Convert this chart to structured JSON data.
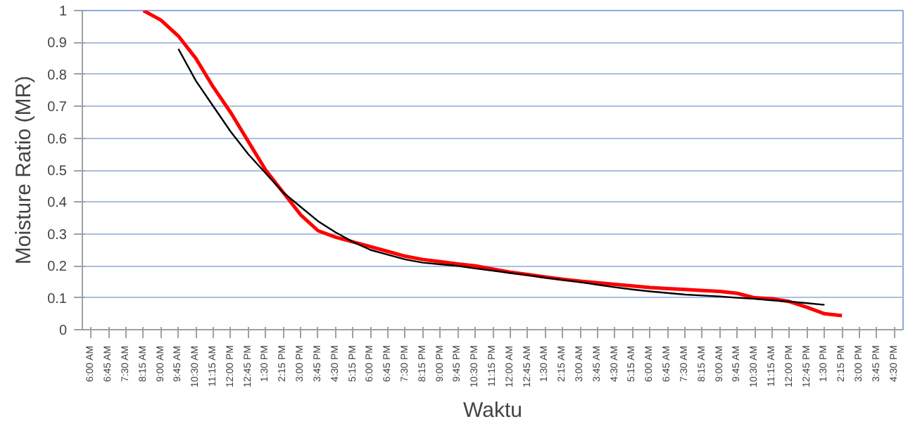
{
  "chart_data": {
    "type": "line",
    "xlabel": "Waktu",
    "ylabel": "Moisture Ratio (MR)",
    "grid": "y",
    "ylim": [
      0,
      1
    ],
    "yticks": [
      0,
      0.1,
      0.2,
      0.3,
      0.4,
      0.5,
      0.6,
      0.7,
      0.8,
      0.9,
      1
    ],
    "categories": [
      "6:00 AM",
      "6:45 AM",
      "7:30 AM",
      "8:15 AM",
      "9:00 AM",
      "9:45 AM",
      "10:30 AM",
      "11:15 AM",
      "12:00 PM",
      "12:45 PM",
      "1:30 PM",
      "2:15 PM",
      "3:00 PM",
      "3:45 PM",
      "4:30 PM",
      "5:15 PM",
      "6:00 PM",
      "6:45 PM",
      "7:30 PM",
      "8:15 PM",
      "9:00 PM",
      "9:45 PM",
      "10:30 PM",
      "11:15 PM",
      "12:00 AM",
      "12:45 AM",
      "1:30 AM",
      "2:15 AM",
      "3:00 AM",
      "3:45 AM",
      "4:30 AM",
      "5:15 AM",
      "6:00 AM",
      "6:45 AM",
      "7:30 AM",
      "8:15 AM",
      "9:00 AM",
      "9:45 AM",
      "10:30 AM",
      "11:15 AM",
      "12:00 PM",
      "12:45 PM",
      "1:30 PM",
      "2:15 PM",
      "3:00 PM",
      "3:45 PM",
      "4:30 PM"
    ],
    "series": [
      {
        "color": "#ff0000",
        "values": [
          null,
          null,
          null,
          1.0,
          0.97,
          0.92,
          0.85,
          0.76,
          0.68,
          0.59,
          0.5,
          0.43,
          0.36,
          0.31,
          0.29,
          0.275,
          0.26,
          0.245,
          0.23,
          0.22,
          0.213,
          0.206,
          0.2,
          0.19,
          0.18,
          0.173,
          0.165,
          0.158,
          0.152,
          0.147,
          0.142,
          0.137,
          0.132,
          0.129,
          0.126,
          0.123,
          0.12,
          0.114,
          0.1,
          0.097,
          0.088,
          0.07,
          0.05,
          0.044,
          null,
          null,
          null
        ]
      },
      {
        "color": "#000000",
        "values": [
          null,
          null,
          null,
          null,
          null,
          0.88,
          0.78,
          0.7,
          0.62,
          0.55,
          0.49,
          0.43,
          0.385,
          0.34,
          0.305,
          0.275,
          0.25,
          0.235,
          0.22,
          0.21,
          0.205,
          0.2,
          0.192,
          0.185,
          0.178,
          0.171,
          0.163,
          0.156,
          0.149,
          0.141,
          0.133,
          0.126,
          0.12,
          0.115,
          0.11,
          0.107,
          0.104,
          0.1,
          0.097,
          0.092,
          0.088,
          0.083,
          0.078,
          null,
          null,
          null,
          null
        ]
      }
    ]
  }
}
